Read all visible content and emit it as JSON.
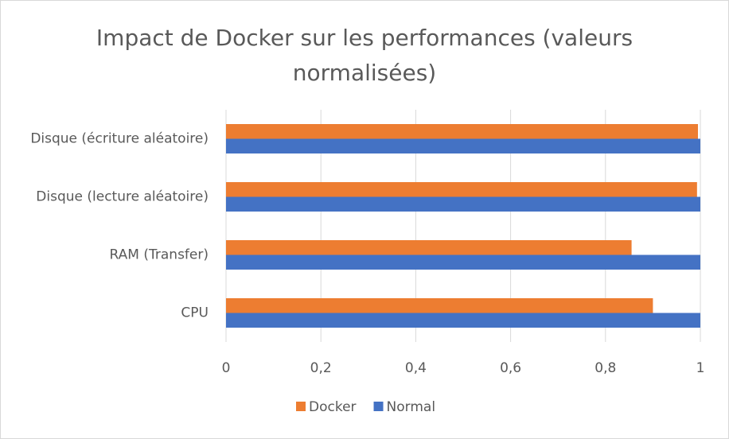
{
  "chart_data": {
    "type": "hbar",
    "title": "Impact de Docker sur les performances (valeurs normalisées)",
    "categories": [
      "Disque (écriture aléatoire)",
      "Disque  (lecture aléatoire)",
      "RAM (Transfer)",
      "CPU"
    ],
    "series": [
      {
        "name": "Docker",
        "color": "#ed7d31",
        "values": [
          0.995,
          0.993,
          0.855,
          0.9
        ]
      },
      {
        "name": "Normal",
        "color": "#4472c4",
        "values": [
          1,
          1,
          1,
          1
        ]
      }
    ],
    "xlim": [
      0,
      1
    ],
    "xticks": [
      0,
      {
        "value": 0.2,
        "label": "0,2"
      },
      {
        "value": 0.4,
        "label": "0,4"
      },
      {
        "value": 0.6,
        "label": "0,6"
      },
      {
        "value": 0.8,
        "label": "0,8"
      },
      1
    ],
    "grid": true,
    "legend": "bottom"
  }
}
